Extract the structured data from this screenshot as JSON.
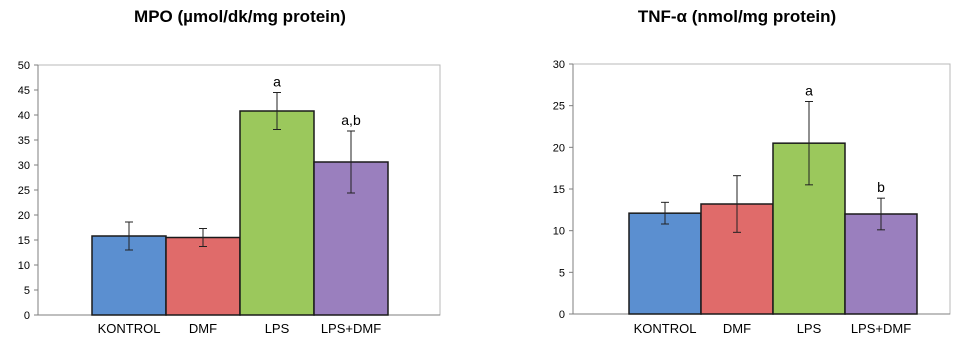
{
  "chart_data": [
    {
      "type": "bar",
      "title": "MPO (µmol/dk/mg protein)",
      "categories": [
        "KONTROL",
        "DMF",
        "LPS",
        "LPS+DMF"
      ],
      "values": [
        15.8,
        15.5,
        40.8,
        30.6
      ],
      "errors": [
        2.8,
        1.8,
        3.7,
        6.2
      ],
      "annotations": [
        "",
        "",
        "a",
        "a,b"
      ],
      "bar_colors": [
        "#5b8fd0",
        "#e06b6a",
        "#9bc85c",
        "#9a7fbe"
      ],
      "ylim": [
        0,
        50
      ],
      "yticks": [
        0,
        5,
        10,
        15,
        20,
        25,
        30,
        35,
        40,
        45,
        50
      ]
    },
    {
      "type": "bar",
      "title": "TNF-α (nmol/mg protein)",
      "categories": [
        "KONTROL",
        "DMF",
        "LPS",
        "LPS+DMF"
      ],
      "values": [
        12.1,
        13.2,
        20.5,
        12.0
      ],
      "errors": [
        1.3,
        3.4,
        5.0,
        1.9
      ],
      "annotations": [
        "",
        "",
        "a",
        "b"
      ],
      "bar_colors": [
        "#5b8fd0",
        "#e06b6a",
        "#9bc85c",
        "#9a7fbe"
      ],
      "ylim": [
        0,
        30
      ],
      "yticks": [
        0,
        5,
        10,
        15,
        20,
        25,
        30
      ]
    }
  ]
}
